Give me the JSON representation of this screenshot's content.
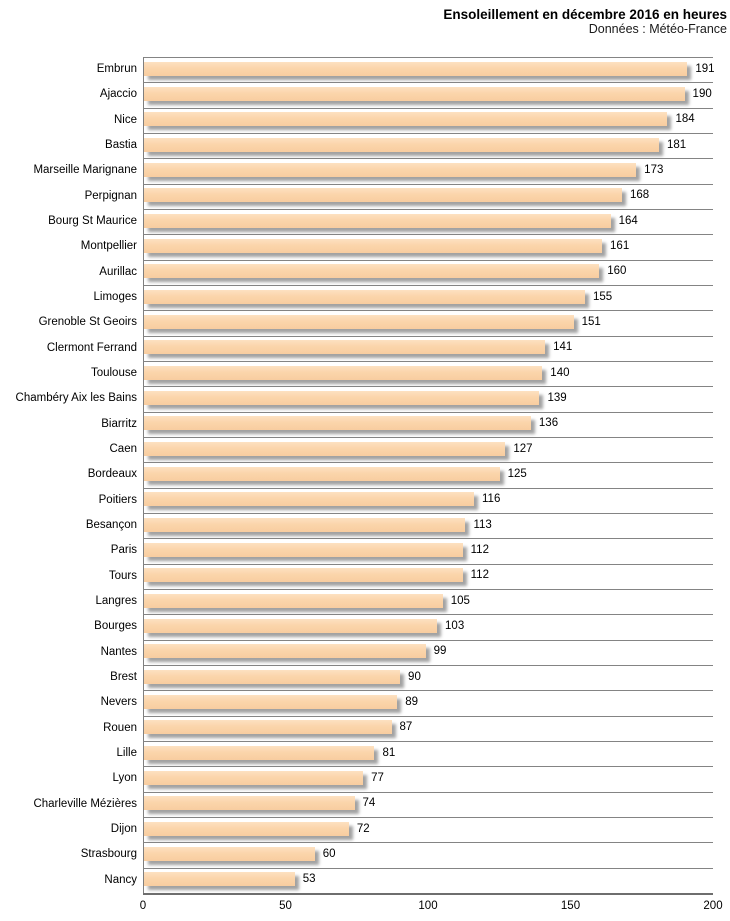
{
  "header": {
    "title": "Ensoleillement en décembre 2016 en heures",
    "subtitle": "Données : Météo-France"
  },
  "chart_data": {
    "type": "bar",
    "orientation": "horizontal",
    "title": "Ensoleillement en décembre 2016 en heures",
    "subtitle": "Données : Météo-France",
    "xlabel": "",
    "ylabel": "",
    "xlim": [
      0,
      200
    ],
    "x_ticks": [
      0,
      50,
      100,
      150,
      200
    ],
    "grid": "row-separators",
    "legend": "none",
    "bar_color": "#fbd5ab",
    "bar_shadow_color": "#a2a2a2",
    "gridline_color": "#848484",
    "value_labels": "end-of-bar",
    "categories": [
      "Embrun",
      "Ajaccio",
      "Nice",
      "Bastia",
      "Marseille Marignane",
      "Perpignan",
      "Bourg St Maurice",
      "Montpellier",
      "Aurillac",
      "Limoges",
      "Grenoble St Geoirs",
      "Clermont Ferrand",
      "Toulouse",
      "Chambéry Aix les Bains",
      "Biarritz",
      "Caen",
      "Bordeaux",
      "Poitiers",
      "Besançon",
      "Paris",
      "Tours",
      "Langres",
      "Bourges",
      "Nantes",
      "Brest",
      "Nevers",
      "Rouen",
      "Lille",
      "Lyon",
      "Charleville Mézières",
      "Dijon",
      "Strasbourg",
      "Nancy"
    ],
    "values": [
      191,
      190,
      184,
      181,
      173,
      168,
      164,
      161,
      160,
      155,
      151,
      141,
      140,
      139,
      136,
      127,
      125,
      116,
      113,
      112,
      112,
      105,
      103,
      99,
      90,
      89,
      87,
      81,
      77,
      74,
      72,
      60,
      53
    ]
  }
}
